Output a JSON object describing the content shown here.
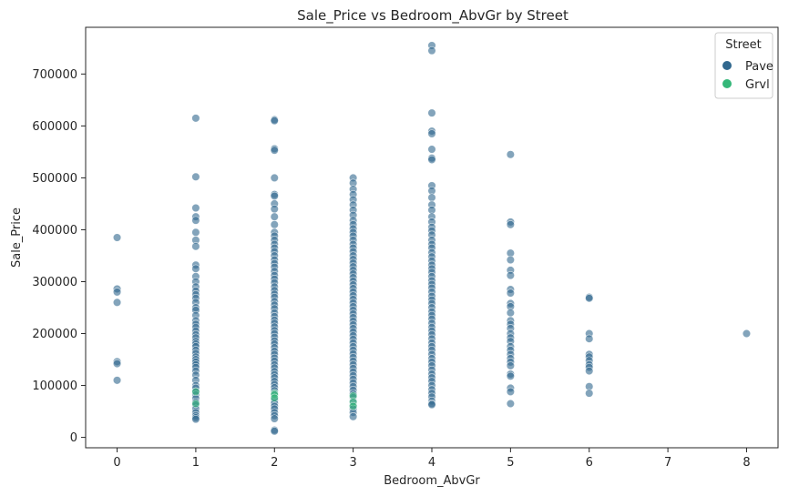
{
  "chart_data": {
    "type": "scatter",
    "title": "Sale_Price vs Bedroom_AbvGr by Street",
    "xlabel": "Bedroom_AbvGr",
    "ylabel": "Sale_Price",
    "xlim": [
      -0.4,
      8.4
    ],
    "ylim": [
      -20000,
      790000
    ],
    "xticks": [
      0,
      1,
      2,
      3,
      4,
      5,
      6,
      7,
      8
    ],
    "yticks": [
      0,
      100000,
      200000,
      300000,
      400000,
      500000,
      600000,
      700000
    ],
    "grid": false,
    "legend": {
      "title": "Street",
      "placement": "top-right"
    },
    "series": [
      {
        "name": "Pave",
        "color": "#31688e",
        "points": [
          [
            0,
            385000
          ],
          [
            0,
            286000
          ],
          [
            0,
            280000
          ],
          [
            0,
            260000
          ],
          [
            0,
            146000
          ],
          [
            0,
            142000
          ],
          [
            0,
            110000
          ],
          [
            1,
            615000
          ],
          [
            1,
            502000
          ],
          [
            1,
            442000
          ],
          [
            1,
            425000
          ],
          [
            1,
            418000
          ],
          [
            1,
            395000
          ],
          [
            1,
            380000
          ],
          [
            1,
            368000
          ],
          [
            1,
            332000
          ],
          [
            1,
            325000
          ],
          [
            1,
            310000
          ],
          [
            1,
            300000
          ],
          [
            1,
            290000
          ],
          [
            1,
            282000
          ],
          [
            1,
            275000
          ],
          [
            1,
            268000
          ],
          [
            1,
            260000
          ],
          [
            1,
            250000
          ],
          [
            1,
            245000
          ],
          [
            1,
            235000
          ],
          [
            1,
            225000
          ],
          [
            1,
            218000
          ],
          [
            1,
            212000
          ],
          [
            1,
            205000
          ],
          [
            1,
            198000
          ],
          [
            1,
            192000
          ],
          [
            1,
            185000
          ],
          [
            1,
            180000
          ],
          [
            1,
            175000
          ],
          [
            1,
            168000
          ],
          [
            1,
            162000
          ],
          [
            1,
            155000
          ],
          [
            1,
            150000
          ],
          [
            1,
            145000
          ],
          [
            1,
            140000
          ],
          [
            1,
            135000
          ],
          [
            1,
            128000
          ],
          [
            1,
            120000
          ],
          [
            1,
            110000
          ],
          [
            1,
            100000
          ],
          [
            1,
            95000
          ],
          [
            1,
            88000
          ],
          [
            1,
            82000
          ],
          [
            1,
            75000
          ],
          [
            1,
            68000
          ],
          [
            1,
            62000
          ],
          [
            1,
            55000
          ],
          [
            1,
            48000
          ],
          [
            1,
            42000
          ],
          [
            1,
            38000
          ],
          [
            1,
            35000
          ],
          [
            2,
            612000
          ],
          [
            2,
            610000
          ],
          [
            2,
            556000
          ],
          [
            2,
            553000
          ],
          [
            2,
            500000
          ],
          [
            2,
            468000
          ],
          [
            2,
            465000
          ],
          [
            2,
            450000
          ],
          [
            2,
            440000
          ],
          [
            2,
            425000
          ],
          [
            2,
            410000
          ],
          [
            2,
            395000
          ],
          [
            2,
            388000
          ],
          [
            2,
            380000
          ],
          [
            2,
            372000
          ],
          [
            2,
            365000
          ],
          [
            2,
            358000
          ],
          [
            2,
            350000
          ],
          [
            2,
            342000
          ],
          [
            2,
            335000
          ],
          [
            2,
            328000
          ],
          [
            2,
            320000
          ],
          [
            2,
            312000
          ],
          [
            2,
            305000
          ],
          [
            2,
            298000
          ],
          [
            2,
            290000
          ],
          [
            2,
            283000
          ],
          [
            2,
            276000
          ],
          [
            2,
            270000
          ],
          [
            2,
            262000
          ],
          [
            2,
            255000
          ],
          [
            2,
            248000
          ],
          [
            2,
            240000
          ],
          [
            2,
            233000
          ],
          [
            2,
            226000
          ],
          [
            2,
            220000
          ],
          [
            2,
            213000
          ],
          [
            2,
            206000
          ],
          [
            2,
            200000
          ],
          [
            2,
            193000
          ],
          [
            2,
            186000
          ],
          [
            2,
            180000
          ],
          [
            2,
            173000
          ],
          [
            2,
            166000
          ],
          [
            2,
            160000
          ],
          [
            2,
            153000
          ],
          [
            2,
            147000
          ],
          [
            2,
            140000
          ],
          [
            2,
            134000
          ],
          [
            2,
            127000
          ],
          [
            2,
            121000
          ],
          [
            2,
            115000
          ],
          [
            2,
            108000
          ],
          [
            2,
            102000
          ],
          [
            2,
            96000
          ],
          [
            2,
            90000
          ],
          [
            2,
            84000
          ],
          [
            2,
            78000
          ],
          [
            2,
            72000
          ],
          [
            2,
            66000
          ],
          [
            2,
            60000
          ],
          [
            2,
            55000
          ],
          [
            2,
            48000
          ],
          [
            2,
            42000
          ],
          [
            2,
            36000
          ],
          [
            2,
            14000
          ],
          [
            2,
            12000
          ],
          [
            3,
            500000
          ],
          [
            3,
            490000
          ],
          [
            3,
            478000
          ],
          [
            3,
            468000
          ],
          [
            3,
            458000
          ],
          [
            3,
            448000
          ],
          [
            3,
            438000
          ],
          [
            3,
            428000
          ],
          [
            3,
            418000
          ],
          [
            3,
            410000
          ],
          [
            3,
            402000
          ],
          [
            3,
            395000
          ],
          [
            3,
            388000
          ],
          [
            3,
            380000
          ],
          [
            3,
            372000
          ],
          [
            3,
            365000
          ],
          [
            3,
            358000
          ],
          [
            3,
            350000
          ],
          [
            3,
            343000
          ],
          [
            3,
            336000
          ],
          [
            3,
            329000
          ],
          [
            3,
            322000
          ],
          [
            3,
            315000
          ],
          [
            3,
            308000
          ],
          [
            3,
            301000
          ],
          [
            3,
            294000
          ],
          [
            3,
            287000
          ],
          [
            3,
            280000
          ],
          [
            3,
            273000
          ],
          [
            3,
            266000
          ],
          [
            3,
            259000
          ],
          [
            3,
            252000
          ],
          [
            3,
            245000
          ],
          [
            3,
            238000
          ],
          [
            3,
            231000
          ],
          [
            3,
            224000
          ],
          [
            3,
            217000
          ],
          [
            3,
            210000
          ],
          [
            3,
            203000
          ],
          [
            3,
            196000
          ],
          [
            3,
            189000
          ],
          [
            3,
            182000
          ],
          [
            3,
            175000
          ],
          [
            3,
            168000
          ],
          [
            3,
            161000
          ],
          [
            3,
            154000
          ],
          [
            3,
            147000
          ],
          [
            3,
            140000
          ],
          [
            3,
            133000
          ],
          [
            3,
            126000
          ],
          [
            3,
            119000
          ],
          [
            3,
            112000
          ],
          [
            3,
            105000
          ],
          [
            3,
            98000
          ],
          [
            3,
            91000
          ],
          [
            3,
            84000
          ],
          [
            3,
            77000
          ],
          [
            3,
            70000
          ],
          [
            3,
            62000
          ],
          [
            3,
            55000
          ],
          [
            3,
            48000
          ],
          [
            3,
            40000
          ],
          [
            4,
            755000
          ],
          [
            4,
            745000
          ],
          [
            4,
            625000
          ],
          [
            4,
            590000
          ],
          [
            4,
            585000
          ],
          [
            4,
            555000
          ],
          [
            4,
            538000
          ],
          [
            4,
            535000
          ],
          [
            4,
            485000
          ],
          [
            4,
            475000
          ],
          [
            4,
            462000
          ],
          [
            4,
            448000
          ],
          [
            4,
            438000
          ],
          [
            4,
            425000
          ],
          [
            4,
            415000
          ],
          [
            4,
            405000
          ],
          [
            4,
            398000
          ],
          [
            4,
            390000
          ],
          [
            4,
            380000
          ],
          [
            4,
            372000
          ],
          [
            4,
            365000
          ],
          [
            4,
            356000
          ],
          [
            4,
            348000
          ],
          [
            4,
            340000
          ],
          [
            4,
            332000
          ],
          [
            4,
            325000
          ],
          [
            4,
            318000
          ],
          [
            4,
            310000
          ],
          [
            4,
            302000
          ],
          [
            4,
            295000
          ],
          [
            4,
            288000
          ],
          [
            4,
            280000
          ],
          [
            4,
            272000
          ],
          [
            4,
            265000
          ],
          [
            4,
            258000
          ],
          [
            4,
            250000
          ],
          [
            4,
            242000
          ],
          [
            4,
            235000
          ],
          [
            4,
            228000
          ],
          [
            4,
            220000
          ],
          [
            4,
            212000
          ],
          [
            4,
            205000
          ],
          [
            4,
            198000
          ],
          [
            4,
            190000
          ],
          [
            4,
            182000
          ],
          [
            4,
            175000
          ],
          [
            4,
            168000
          ],
          [
            4,
            160000
          ],
          [
            4,
            152000
          ],
          [
            4,
            145000
          ],
          [
            4,
            138000
          ],
          [
            4,
            130000
          ],
          [
            4,
            122000
          ],
          [
            4,
            115000
          ],
          [
            4,
            108000
          ],
          [
            4,
            100000
          ],
          [
            4,
            92000
          ],
          [
            4,
            85000
          ],
          [
            4,
            78000
          ],
          [
            4,
            70000
          ],
          [
            4,
            65000
          ],
          [
            4,
            63000
          ],
          [
            5,
            545000
          ],
          [
            5,
            415000
          ],
          [
            5,
            410000
          ],
          [
            5,
            355000
          ],
          [
            5,
            342000
          ],
          [
            5,
            322000
          ],
          [
            5,
            312000
          ],
          [
            5,
            285000
          ],
          [
            5,
            278000
          ],
          [
            5,
            258000
          ],
          [
            5,
            252000
          ],
          [
            5,
            240000
          ],
          [
            5,
            225000
          ],
          [
            5,
            218000
          ],
          [
            5,
            210000
          ],
          [
            5,
            200000
          ],
          [
            5,
            192000
          ],
          [
            5,
            185000
          ],
          [
            5,
            175000
          ],
          [
            5,
            168000
          ],
          [
            5,
            160000
          ],
          [
            5,
            152000
          ],
          [
            5,
            145000
          ],
          [
            5,
            138000
          ],
          [
            5,
            122000
          ],
          [
            5,
            118000
          ],
          [
            5,
            95000
          ],
          [
            5,
            88000
          ],
          [
            5,
            65000
          ],
          [
            6,
            270000
          ],
          [
            6,
            268000
          ],
          [
            6,
            200000
          ],
          [
            6,
            190000
          ],
          [
            6,
            160000
          ],
          [
            6,
            155000
          ],
          [
            6,
            148000
          ],
          [
            6,
            140000
          ],
          [
            6,
            135000
          ],
          [
            6,
            128000
          ],
          [
            6,
            98000
          ],
          [
            6,
            85000
          ],
          [
            8,
            200000
          ]
        ]
      },
      {
        "name": "Grvl",
        "color": "#35b779",
        "points": [
          [
            1,
            88000
          ],
          [
            1,
            65000
          ],
          [
            2,
            85000
          ],
          [
            2,
            82000
          ],
          [
            2,
            76000
          ],
          [
            3,
            80000
          ],
          [
            3,
            68000
          ],
          [
            3,
            60000
          ]
        ]
      }
    ]
  }
}
